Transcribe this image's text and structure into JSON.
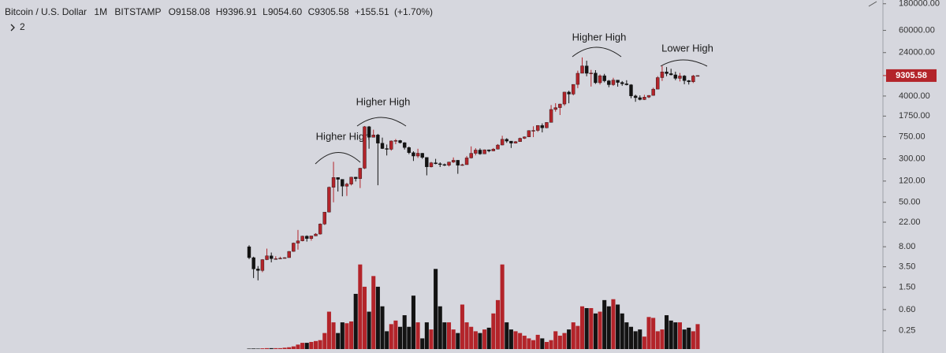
{
  "header": {
    "symbol": "Bitcoin / U.S. Dollar",
    "interval": "1M",
    "exchange": "BITSTAMP",
    "open": {
      "label": "O",
      "value": "9158.08"
    },
    "high": {
      "label": "H",
      "value": "9396.91"
    },
    "low": {
      "label": "L",
      "value": "9054.60"
    },
    "close": {
      "label": "C",
      "value": "9305.58"
    },
    "change": "+155.51",
    "change_pct": "(+1.70%)",
    "indicators": "2"
  },
  "chart_data": {
    "type": "candlestick",
    "log_scale": true,
    "up_color": "#b3242a",
    "down_color": "#131313",
    "ylim": [
      0.1,
      210000
    ],
    "y2lim": [
      0,
      100
    ],
    "yticks": [
      {
        "value": 180000,
        "label": "180000.00"
      },
      {
        "value": 60000,
        "label": "60000.00"
      },
      {
        "value": 24000,
        "label": "24000.00"
      },
      {
        "value": 4000,
        "label": "4000.00"
      },
      {
        "value": 1750,
        "label": "1750.00"
      },
      {
        "value": 750,
        "label": "750.00"
      },
      {
        "value": 300,
        "label": "300.00"
      },
      {
        "value": 120,
        "label": "120.00"
      },
      {
        "value": 50,
        "label": "50.00"
      },
      {
        "value": 22,
        "label": "22.00"
      },
      {
        "value": 8,
        "label": "8.00"
      },
      {
        "value": 3.5,
        "label": "3.50"
      },
      {
        "value": 1.5,
        "label": "1.50"
      },
      {
        "value": 0.6,
        "label": "0.60"
      },
      {
        "value": 0.25,
        "label": "0.25"
      }
    ],
    "price_label": {
      "value": 9305.58,
      "label": "9305.58"
    },
    "annotations": [
      "Higher High",
      "Higher High",
      "Higher High",
      "Lower High"
    ],
    "open": [
      8.0,
      5.1,
      3.2,
      3.0,
      4.7,
      5.5,
      4.9,
      4.9,
      5.0,
      5.1,
      6.6,
      9.3,
      10.2,
      12.4,
      11.2,
      12.5,
      13.5,
      20.4,
      33.4,
      93,
      139,
      129,
      97,
      106,
      141,
      133,
      204,
      1128,
      731,
      803,
      573,
      459,
      445,
      627,
      639,
      585,
      478,
      387,
      337,
      378,
      318,
      216,
      255,
      245,
      237,
      230,
      263,
      283,
      230,
      236,
      312,
      377,
      431,
      368,
      436,
      416,
      448,
      531,
      672,
      624,
      574,
      609,
      700,
      742,
      963,
      969,
      1190,
      1079,
      1348,
      2299,
      2480,
      2875,
      4703,
      4338,
      6468,
      10233,
      13860,
      10221,
      10326,
      6926,
      9240,
      7494,
      6391,
      7729,
      7011,
      6626,
      6369,
      4017,
      3742,
      3457,
      3823,
      4105,
      5320,
      8555,
      10817,
      10085,
      9590,
      8293,
      9151,
      7546,
      7194,
      9158.08
    ],
    "high": [
      8.5,
      5.3,
      3.6,
      4.8,
      7.4,
      6.3,
      5.4,
      5.3,
      5.2,
      6.7,
      9.5,
      16,
      12.6,
      12.8,
      12.5,
      14,
      21,
      33.5,
      95.7,
      266,
      140,
      129,
      112,
      143,
      143,
      206,
      1163,
      1163,
      1000,
      840,
      720,
      542,
      640,
      680,
      654,
      597,
      498,
      410,
      455,
      382,
      320,
      265,
      300,
      260,
      247,
      266,
      318,
      285,
      245,
      338,
      502,
      466,
      462,
      441,
      439,
      469,
      552,
      777,
      704,
      624,
      626,
      720,
      757,
      975,
      1150,
      1205,
      1295,
      1355,
      2760,
      2980,
      2920,
      4760,
      4980,
      6470,
      11395,
      19666,
      17176,
      11780,
      11650,
      9765,
      9988,
      7760,
      8491,
      7760,
      7410,
      7680,
      6535,
      4236,
      4109,
      4210,
      4137,
      5642,
      9094,
      13880,
      13200,
      12325,
      10925,
      10370,
      9500,
      7750,
      9580,
      9396.91
    ],
    "low": [
      4.8,
      2.2,
      2.0,
      2.8,
      4.6,
      4.2,
      4.7,
      4.8,
      4.9,
      5.1,
      6.5,
      7.1,
      10.0,
      9.9,
      10.3,
      12.4,
      13.2,
      19.6,
      33.0,
      50,
      78,
      64,
      65,
      100,
      118,
      90,
      197,
      456,
      730,
      101,
      450,
      345,
      421,
      550,
      565,
      440,
      364,
      275,
      312,
      300,
      152,
      210,
      240,
      214,
      223,
      219,
      253,
      162,
      225,
      236,
      304,
      347,
      355,
      366,
      394,
      412,
      442,
      525,
      581,
      470,
      564,
      605,
      679,
      737,
      735,
      912,
      893,
      1061,
      1348,
      2100,
      1830,
      2670,
      2970,
      4110,
      5540,
      10233,
      9035,
      5920,
      6600,
      6430,
      7034,
      5755,
      6071,
      5880,
      6100,
      6205,
      3652,
      3156,
      3348,
      3391,
      3680,
      4055,
      5320,
      7460,
      9080,
      9370,
      7700,
      7300,
      6515,
      6425,
      6850,
      9054.6
    ],
    "close": [
      5.1,
      3.2,
      3.0,
      4.7,
      5.5,
      4.9,
      4.9,
      5.0,
      5.1,
      6.6,
      9.3,
      10.2,
      12.4,
      11.2,
      12.5,
      13.5,
      20.4,
      33.4,
      93,
      139,
      129,
      97,
      106,
      141,
      133,
      204,
      1128,
      731,
      803,
      573,
      459,
      445,
      627,
      639,
      585,
      478,
      387,
      337,
      378,
      318,
      216,
      255,
      245,
      237,
      230,
      263,
      283,
      230,
      236,
      312,
      377,
      431,
      368,
      436,
      416,
      448,
      531,
      672,
      624,
      574,
      609,
      700,
      742,
      963,
      969,
      1190,
      1079,
      1348,
      2299,
      2480,
      2875,
      4703,
      4338,
      6468,
      10233,
      13860,
      10221,
      10326,
      6926,
      9240,
      7494,
      6391,
      7729,
      7011,
      6626,
      6369,
      4017,
      3742,
      3457,
      3823,
      4105,
      5320,
      8555,
      10817,
      10085,
      9590,
      8293,
      9151,
      7546,
      7194,
      9150.07,
      9305.58
    ],
    "volume": [
      0.5,
      0.6,
      0.5,
      0.8,
      1,
      1,
      1,
      1,
      1.5,
      2,
      3,
      5,
      7,
      7,
      8,
      9,
      10,
      18,
      42,
      30,
      18,
      30,
      29,
      31,
      62,
      95,
      70,
      42,
      82,
      70,
      48,
      20,
      28,
      32,
      25,
      38,
      25,
      60,
      30,
      12,
      30,
      22,
      90,
      48,
      30,
      30,
      22,
      18,
      50,
      30,
      25,
      20,
      18,
      22,
      24,
      40,
      55,
      95,
      30,
      22,
      20,
      18,
      15,
      12,
      10,
      16,
      12,
      8,
      10,
      20,
      15,
      18,
      22,
      30,
      26,
      48,
      46,
      46,
      40,
      42,
      55,
      48,
      56,
      50,
      40,
      30,
      25,
      20,
      22,
      14,
      36,
      35,
      20,
      22,
      38,
      32,
      30,
      30,
      22,
      24,
      20,
      28
    ]
  }
}
